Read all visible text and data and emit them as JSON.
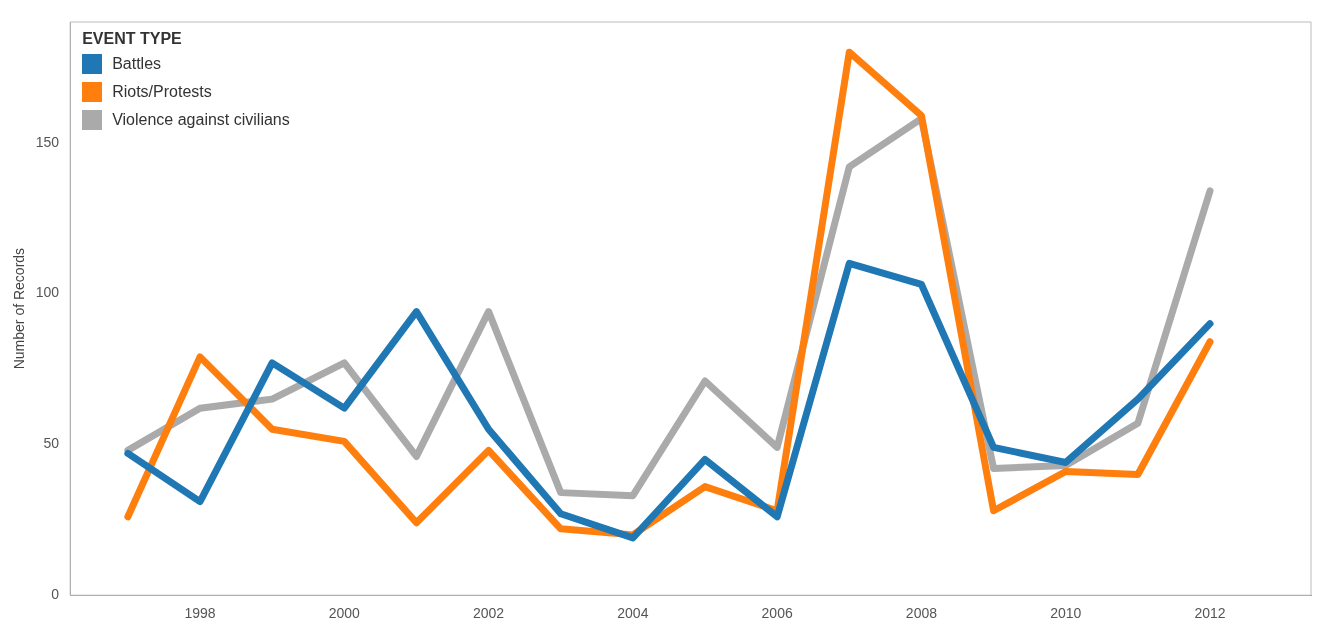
{
  "chart_data": {
    "type": "line",
    "ylabel": "Number of Records",
    "legend_title": "EVENT TYPE",
    "legend": "top left",
    "grid": false,
    "marker": "none",
    "line_style": "solid",
    "x": [
      1997,
      1998,
      1999,
      2000,
      2001,
      2002,
      2003,
      2004,
      2005,
      2006,
      2007,
      2008,
      2009,
      2010,
      2011,
      2012
    ],
    "xlim": [
      1996.2,
      2013.4
    ],
    "xticks": [
      1998,
      2000,
      2002,
      2004,
      2006,
      2008,
      2010,
      2012
    ],
    "ylim": [
      0,
      190
    ],
    "yticks": [
      0,
      50,
      100,
      150
    ],
    "series": [
      {
        "name": "Battles",
        "color": "#1f77b4",
        "values": [
          47,
          31,
          77,
          62,
          94,
          55,
          27,
          19,
          45,
          26,
          110,
          103,
          49,
          44,
          65,
          90
        ]
      },
      {
        "name": "Riots/Protests",
        "color": "#ff7f0e",
        "values": [
          26,
          79,
          55,
          51,
          24,
          48,
          22,
          20,
          36,
          28,
          180,
          159,
          28,
          41,
          40,
          84
        ]
      },
      {
        "name": "Violence against civilians",
        "color": "#aaaaaa",
        "values": [
          48,
          62,
          65,
          77,
          46,
          94,
          34,
          33,
          71,
          49,
          142,
          158,
          42,
          43,
          57,
          134
        ]
      }
    ]
  }
}
